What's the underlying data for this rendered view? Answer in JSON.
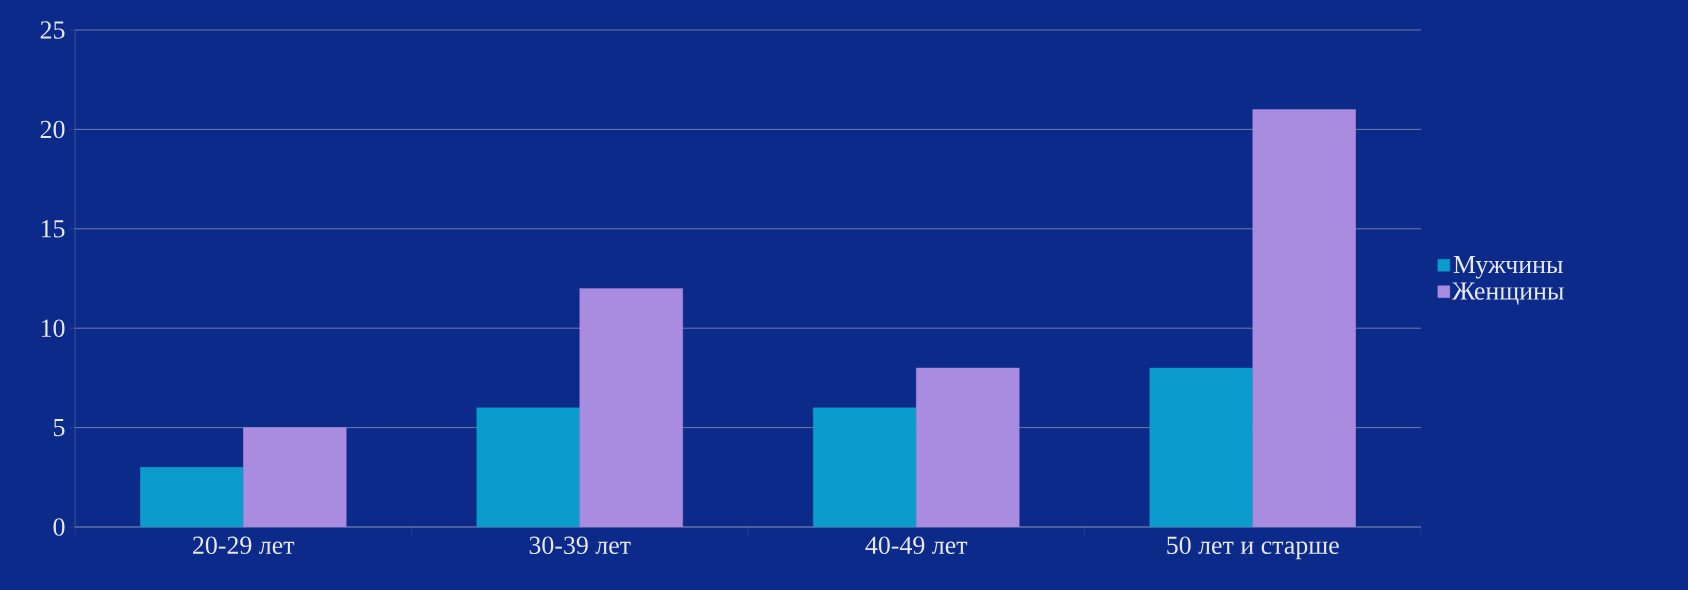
{
  "chart_data": {
    "type": "bar",
    "categories": [
      "20-29 лет",
      "30-39 лет",
      "40-49 лет",
      "50 лет и старше"
    ],
    "series": [
      {
        "name": "Мужчины",
        "color": "#0a9ccc",
        "values": [
          3,
          6,
          6,
          8
        ]
      },
      {
        "name": "Женщины",
        "color": "#a98be0",
        "values": [
          5,
          12,
          8,
          21
        ]
      }
    ],
    "ylim": [
      0,
      25
    ],
    "yticks": [
      0,
      5,
      10,
      15,
      20,
      25
    ],
    "grid": "y",
    "legend": "right"
  }
}
